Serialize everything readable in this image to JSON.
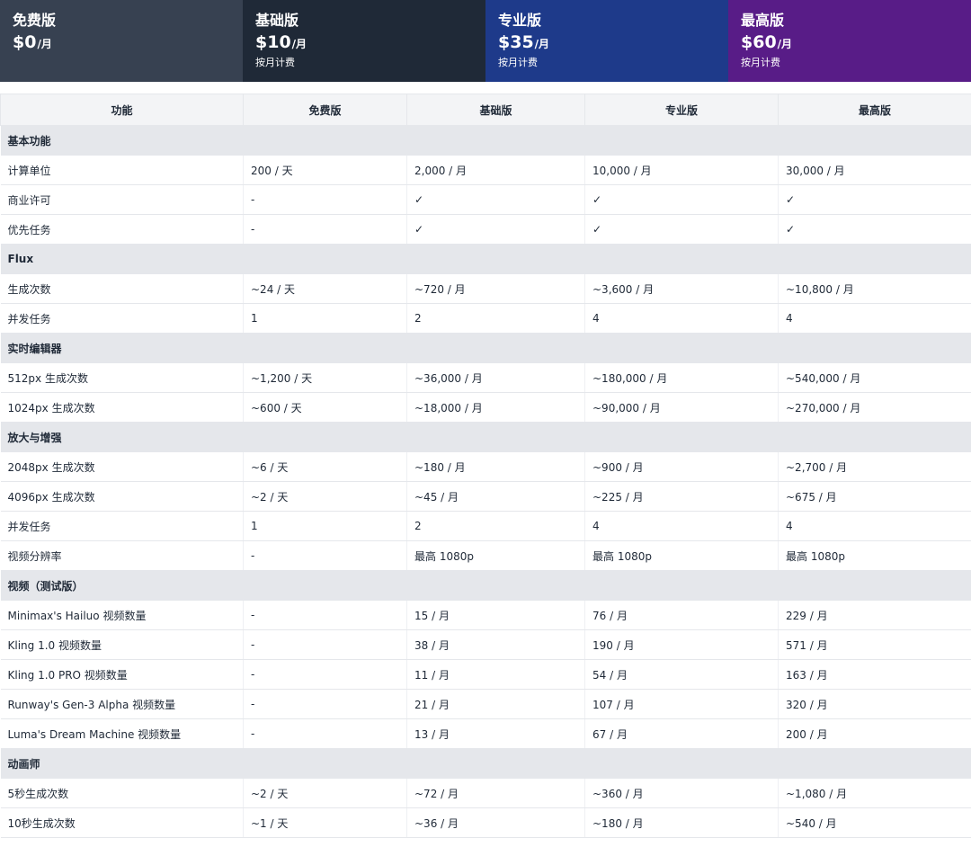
{
  "plans": [
    {
      "name": "免费版",
      "price": "$0",
      "unit": "/月",
      "note": "",
      "bg": "#374151"
    },
    {
      "name": "基础版",
      "price": "$10",
      "unit": "/月",
      "note": "按月计费",
      "bg": "#1f2937"
    },
    {
      "name": "专业版",
      "price": "$35",
      "unit": "/月",
      "note": "按月计费",
      "bg": "#1e3a8a"
    },
    {
      "name": "最高版",
      "price": "$60",
      "unit": "/月",
      "note": "按月计费",
      "bg": "#581c87"
    }
  ],
  "table": {
    "headers": [
      "功能",
      "免费版",
      "基础版",
      "专业版",
      "最高版"
    ],
    "rows": [
      {
        "section": "基本功能"
      },
      {
        "cells": [
          "计算单位",
          "200 / 天",
          "2,000 / 月",
          "10,000 / 月",
          "30,000 / 月"
        ]
      },
      {
        "cells": [
          "商业许可",
          "-",
          "✓",
          "✓",
          "✓"
        ]
      },
      {
        "cells": [
          "优先任务",
          "-",
          "✓",
          "✓",
          "✓"
        ]
      },
      {
        "section": "Flux"
      },
      {
        "cells": [
          "生成次数",
          "~24 / 天",
          "~720 / 月",
          "~3,600 / 月",
          "~10,800 / 月"
        ]
      },
      {
        "cells": [
          "并发任务",
          "1",
          "2",
          "4",
          "4"
        ]
      },
      {
        "section": "实时编辑器"
      },
      {
        "cells": [
          "512px 生成次数",
          "~1,200 / 天",
          "~36,000 / 月",
          "~180,000 / 月",
          "~540,000 / 月"
        ]
      },
      {
        "cells": [
          "1024px 生成次数",
          "~600 / 天",
          "~18,000 / 月",
          "~90,000 / 月",
          "~270,000 / 月"
        ]
      },
      {
        "section": "放大与增强"
      },
      {
        "cells": [
          "2048px 生成次数",
          "~6 / 天",
          "~180 / 月",
          "~900 / 月",
          "~2,700 / 月"
        ]
      },
      {
        "cells": [
          "4096px 生成次数",
          "~2 / 天",
          "~45 / 月",
          "~225 / 月",
          "~675 / 月"
        ]
      },
      {
        "cells": [
          "并发任务",
          "1",
          "2",
          "4",
          "4"
        ]
      },
      {
        "cells": [
          "视频分辨率",
          "-",
          "最高 1080p",
          "最高 1080p",
          "最高 1080p"
        ]
      },
      {
        "section": "视频（测试版）"
      },
      {
        "cells": [
          "Minimax's Hailuo 视频数量",
          "-",
          "15 / 月",
          "76 / 月",
          "229 / 月"
        ]
      },
      {
        "cells": [
          "Kling 1.0 视频数量",
          "-",
          "38 / 月",
          "190 / 月",
          "571 / 月"
        ]
      },
      {
        "cells": [
          "Kling 1.0 PRO 视频数量",
          "-",
          "11 / 月",
          "54 / 月",
          "163 / 月"
        ]
      },
      {
        "cells": [
          "Runway's Gen-3 Alpha 视频数量",
          "-",
          "21 / 月",
          "107 / 月",
          "320 / 月"
        ]
      },
      {
        "cells": [
          "Luma's Dream Machine 视频数量",
          "-",
          "13 / 月",
          "67 / 月",
          "200 / 月"
        ]
      },
      {
        "section": "动画师"
      },
      {
        "cells": [
          "5秒生成次数",
          "~2 / 天",
          "~72 / 月",
          "~360 / 月",
          "~1,080 / 月"
        ]
      },
      {
        "cells": [
          "10秒生成次数",
          "~1 / 天",
          "~36 / 月",
          "~180 / 月",
          "~540 / 月"
        ]
      }
    ]
  }
}
